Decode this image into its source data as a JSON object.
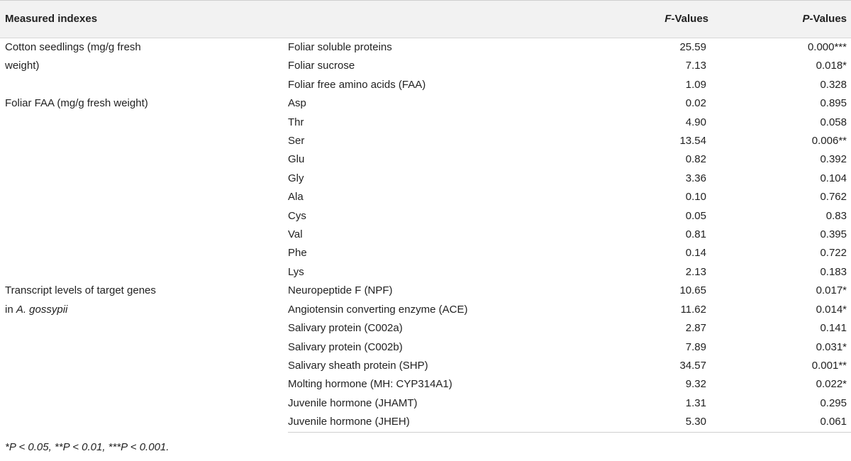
{
  "header": {
    "col1": "Measured indexes",
    "col3_italic": "F",
    "col3_rest": "-Values",
    "col4_italic": "P",
    "col4_rest": "-Values"
  },
  "groups": [
    {
      "label_line1": "Cotton seedlings (mg/g fresh",
      "label_line2": "weight)",
      "label_line2_italic": "",
      "rows": [
        {
          "name": "Foliar soluble proteins",
          "f": "25.59",
          "p": "0.000***"
        },
        {
          "name": "Foliar sucrose",
          "f": "7.13",
          "p": "0.018*"
        },
        {
          "name": "Foliar free amino acids (FAA)",
          "f": "1.09",
          "p": "0.328"
        }
      ]
    },
    {
      "label_line1": "Foliar FAA (mg/g fresh weight)",
      "label_line2": "",
      "label_line2_italic": "",
      "rows": [
        {
          "name": "Asp",
          "f": "0.02",
          "p": "0.895"
        },
        {
          "name": "Thr",
          "f": "4.90",
          "p": "0.058"
        },
        {
          "name": "Ser",
          "f": "13.54",
          "p": "0.006**"
        },
        {
          "name": "Glu",
          "f": "0.82",
          "p": "0.392"
        },
        {
          "name": "Gly",
          "f": "3.36",
          "p": "0.104"
        },
        {
          "name": "Ala",
          "f": "0.10",
          "p": "0.762"
        },
        {
          "name": "Cys",
          "f": "0.05",
          "p": "0.83"
        },
        {
          "name": "Val",
          "f": "0.81",
          "p": "0.395"
        },
        {
          "name": "Phe",
          "f": "0.14",
          "p": "0.722"
        },
        {
          "name": "Lys",
          "f": "2.13",
          "p": "0.183"
        }
      ]
    },
    {
      "label_line1": "Transcript levels of target genes",
      "label_line2": "in ",
      "label_line2_italic": "A. gossypii",
      "rows": [
        {
          "name": "Neuropeptide F (NPF)",
          "f": "10.65",
          "p": "0.017*"
        },
        {
          "name": "Angiotensin converting enzyme (ACE)",
          "f": "11.62",
          "p": "0.014*"
        },
        {
          "name": "Salivary protein (C002a)",
          "f": "2.87",
          "p": "0.141"
        },
        {
          "name": "Salivary protein (C002b)",
          "f": "7.89",
          "p": "0.031*"
        },
        {
          "name": "Salivary sheath protein (SHP)",
          "f": "34.57",
          "p": "0.001**"
        },
        {
          "name": "Molting hormone (MH: CYP314A1)",
          "f": "9.32",
          "p": "0.022*"
        },
        {
          "name": "Juvenile hormone (JHAMT)",
          "f": "1.31",
          "p": "0.295"
        },
        {
          "name": "Juvenile hormone (JHEH)",
          "f": "5.30",
          "p": "0.061"
        }
      ]
    }
  ],
  "footnote": "*P < 0.05, **P < 0.01, ***P < 0.001."
}
